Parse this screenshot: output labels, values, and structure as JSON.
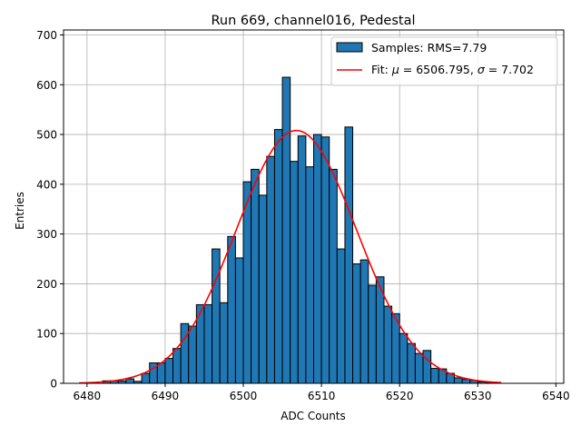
{
  "chart_data": {
    "type": "bar",
    "title": "Run 669, channel016, Pedestal",
    "xlabel": "ADC Counts",
    "ylabel": "Entries",
    "xlim": [
      6477,
      6541
    ],
    "ylim": [
      0,
      710
    ],
    "xticks": [
      6480,
      6490,
      6500,
      6510,
      6520,
      6530,
      6540
    ],
    "yticks": [
      0,
      100,
      200,
      300,
      400,
      500,
      600,
      700
    ],
    "grid": true,
    "legend_position": "top-right",
    "bar_color": "#1f77b4",
    "bar_edge_color": "#000000",
    "fit_color": "#ff0000",
    "histogram": {
      "name": "Samples: RMS=7.79",
      "bin_width": 1,
      "bin_starts": [
        6482,
        6483,
        6484,
        6485,
        6486,
        6487,
        6488,
        6489,
        6490,
        6491,
        6492,
        6493,
        6494,
        6495,
        6496,
        6497,
        6498,
        6499,
        6500,
        6501,
        6502,
        6503,
        6504,
        6505,
        6506,
        6507,
        6508,
        6509,
        6510,
        6511,
        6512,
        6513,
        6514,
        6515,
        6516,
        6517,
        6518,
        6519,
        6520,
        6521,
        6522,
        6523,
        6524,
        6525,
        6526,
        6527,
        6528,
        6529,
        6530,
        6531
      ],
      "values": [
        5,
        5,
        5,
        9,
        4,
        20,
        41,
        41,
        50,
        70,
        120,
        115,
        158,
        158,
        270,
        162,
        295,
        252,
        405,
        430,
        378,
        456,
        510,
        615,
        446,
        497,
        435,
        500,
        495,
        430,
        270,
        515,
        240,
        248,
        197,
        214,
        155,
        140,
        100,
        80,
        60,
        66,
        30,
        29,
        20,
        11,
        8,
        6,
        3,
        2
      ]
    },
    "fit": {
      "name": "Fit: μ = 6506.795, σ = 7.702",
      "mu": 6506.795,
      "sigma": 7.702,
      "amplitude": 508,
      "x_range": [
        6479,
        6533
      ]
    },
    "legend": {
      "hist_prefix": "Samples: RMS=7.79",
      "fit_prefix": "Fit: ",
      "mu_symbol": "μ",
      "mu_value": " = 6506.795, ",
      "sigma_symbol": "σ",
      "sigma_value": " = 7.702"
    }
  }
}
